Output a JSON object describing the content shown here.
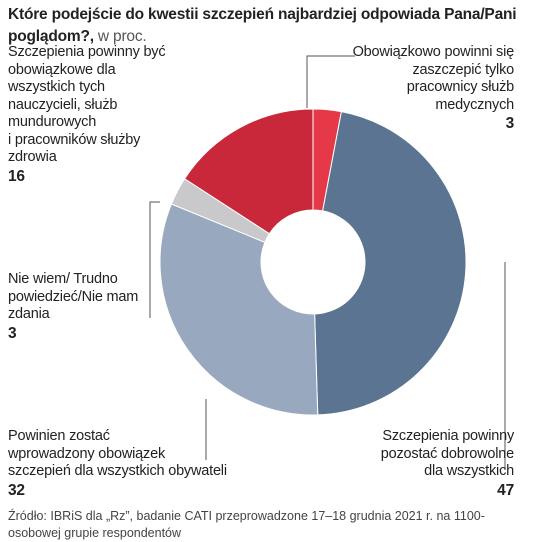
{
  "title": {
    "bold": "Które podejście do kwestii szczepień najbardziej odpowiada Pana/Pani poglądom?,",
    "suffix": " w proc."
  },
  "chart_data": {
    "type": "pie",
    "donut": true,
    "unit": "%",
    "start": "top, clockwise",
    "slices": [
      {
        "label": "Obowiązkowo powinni się zaszczepić tylko pracownicy służb medycznych",
        "value": 3,
        "color": "#e63947"
      },
      {
        "label": "Szczepienia powinny pozostać dobrowolne dla wszystkich",
        "value": 47,
        "color": "#5a7492"
      },
      {
        "label": "Powinien zostać wprowadzony obowiązek szczepień dla wszystkich obywateli",
        "value": 32,
        "color": "#98a9bf"
      },
      {
        "label": "Nie wiem/ Trudno powiedzieć/Nie mam zdania",
        "value": 3,
        "color": "#c9c9cb"
      },
      {
        "label": "Szczepienia powinny być obowiązkowe dla wszystkich tych nauczycieli, służb mundurowych i pracowników służby zdrowia",
        "value": 16,
        "color": "#c8283a"
      }
    ]
  },
  "labels": {
    "medical": {
      "lines": [
        "Obowiązkowo powinni się",
        "zaszczepić tylko",
        "pracownicy służb",
        "medycznych"
      ],
      "value": "3"
    },
    "voluntary": {
      "lines": [
        "Szczepienia powinny",
        "pozostać dobrowolne",
        "dla wszystkich"
      ],
      "value": "47"
    },
    "everyone": {
      "lines": [
        "Powinien zostać",
        "wprowadzony obowiązek",
        "szczepień dla wszystkich obywateli"
      ],
      "value": "32"
    },
    "dontknow": {
      "lines": [
        "Nie wiem/ Trudno",
        "powiedzieć/Nie mam",
        "zdania"
      ],
      "value": "3"
    },
    "groups": {
      "lines": [
        "Szczepienia powinny być",
        "obowiązkowe dla",
        "wszystkich tych",
        "nauczycieli, służb",
        "mundurowych",
        "i pracowników służby",
        "zdrowia"
      ],
      "value": "16"
    }
  },
  "source": "Źródło: IBRiS dla „Rz”, badanie CATI przeprowadzone 17–18 grudnia 2021 r. na 1100-osobowej grupie respondentów"
}
